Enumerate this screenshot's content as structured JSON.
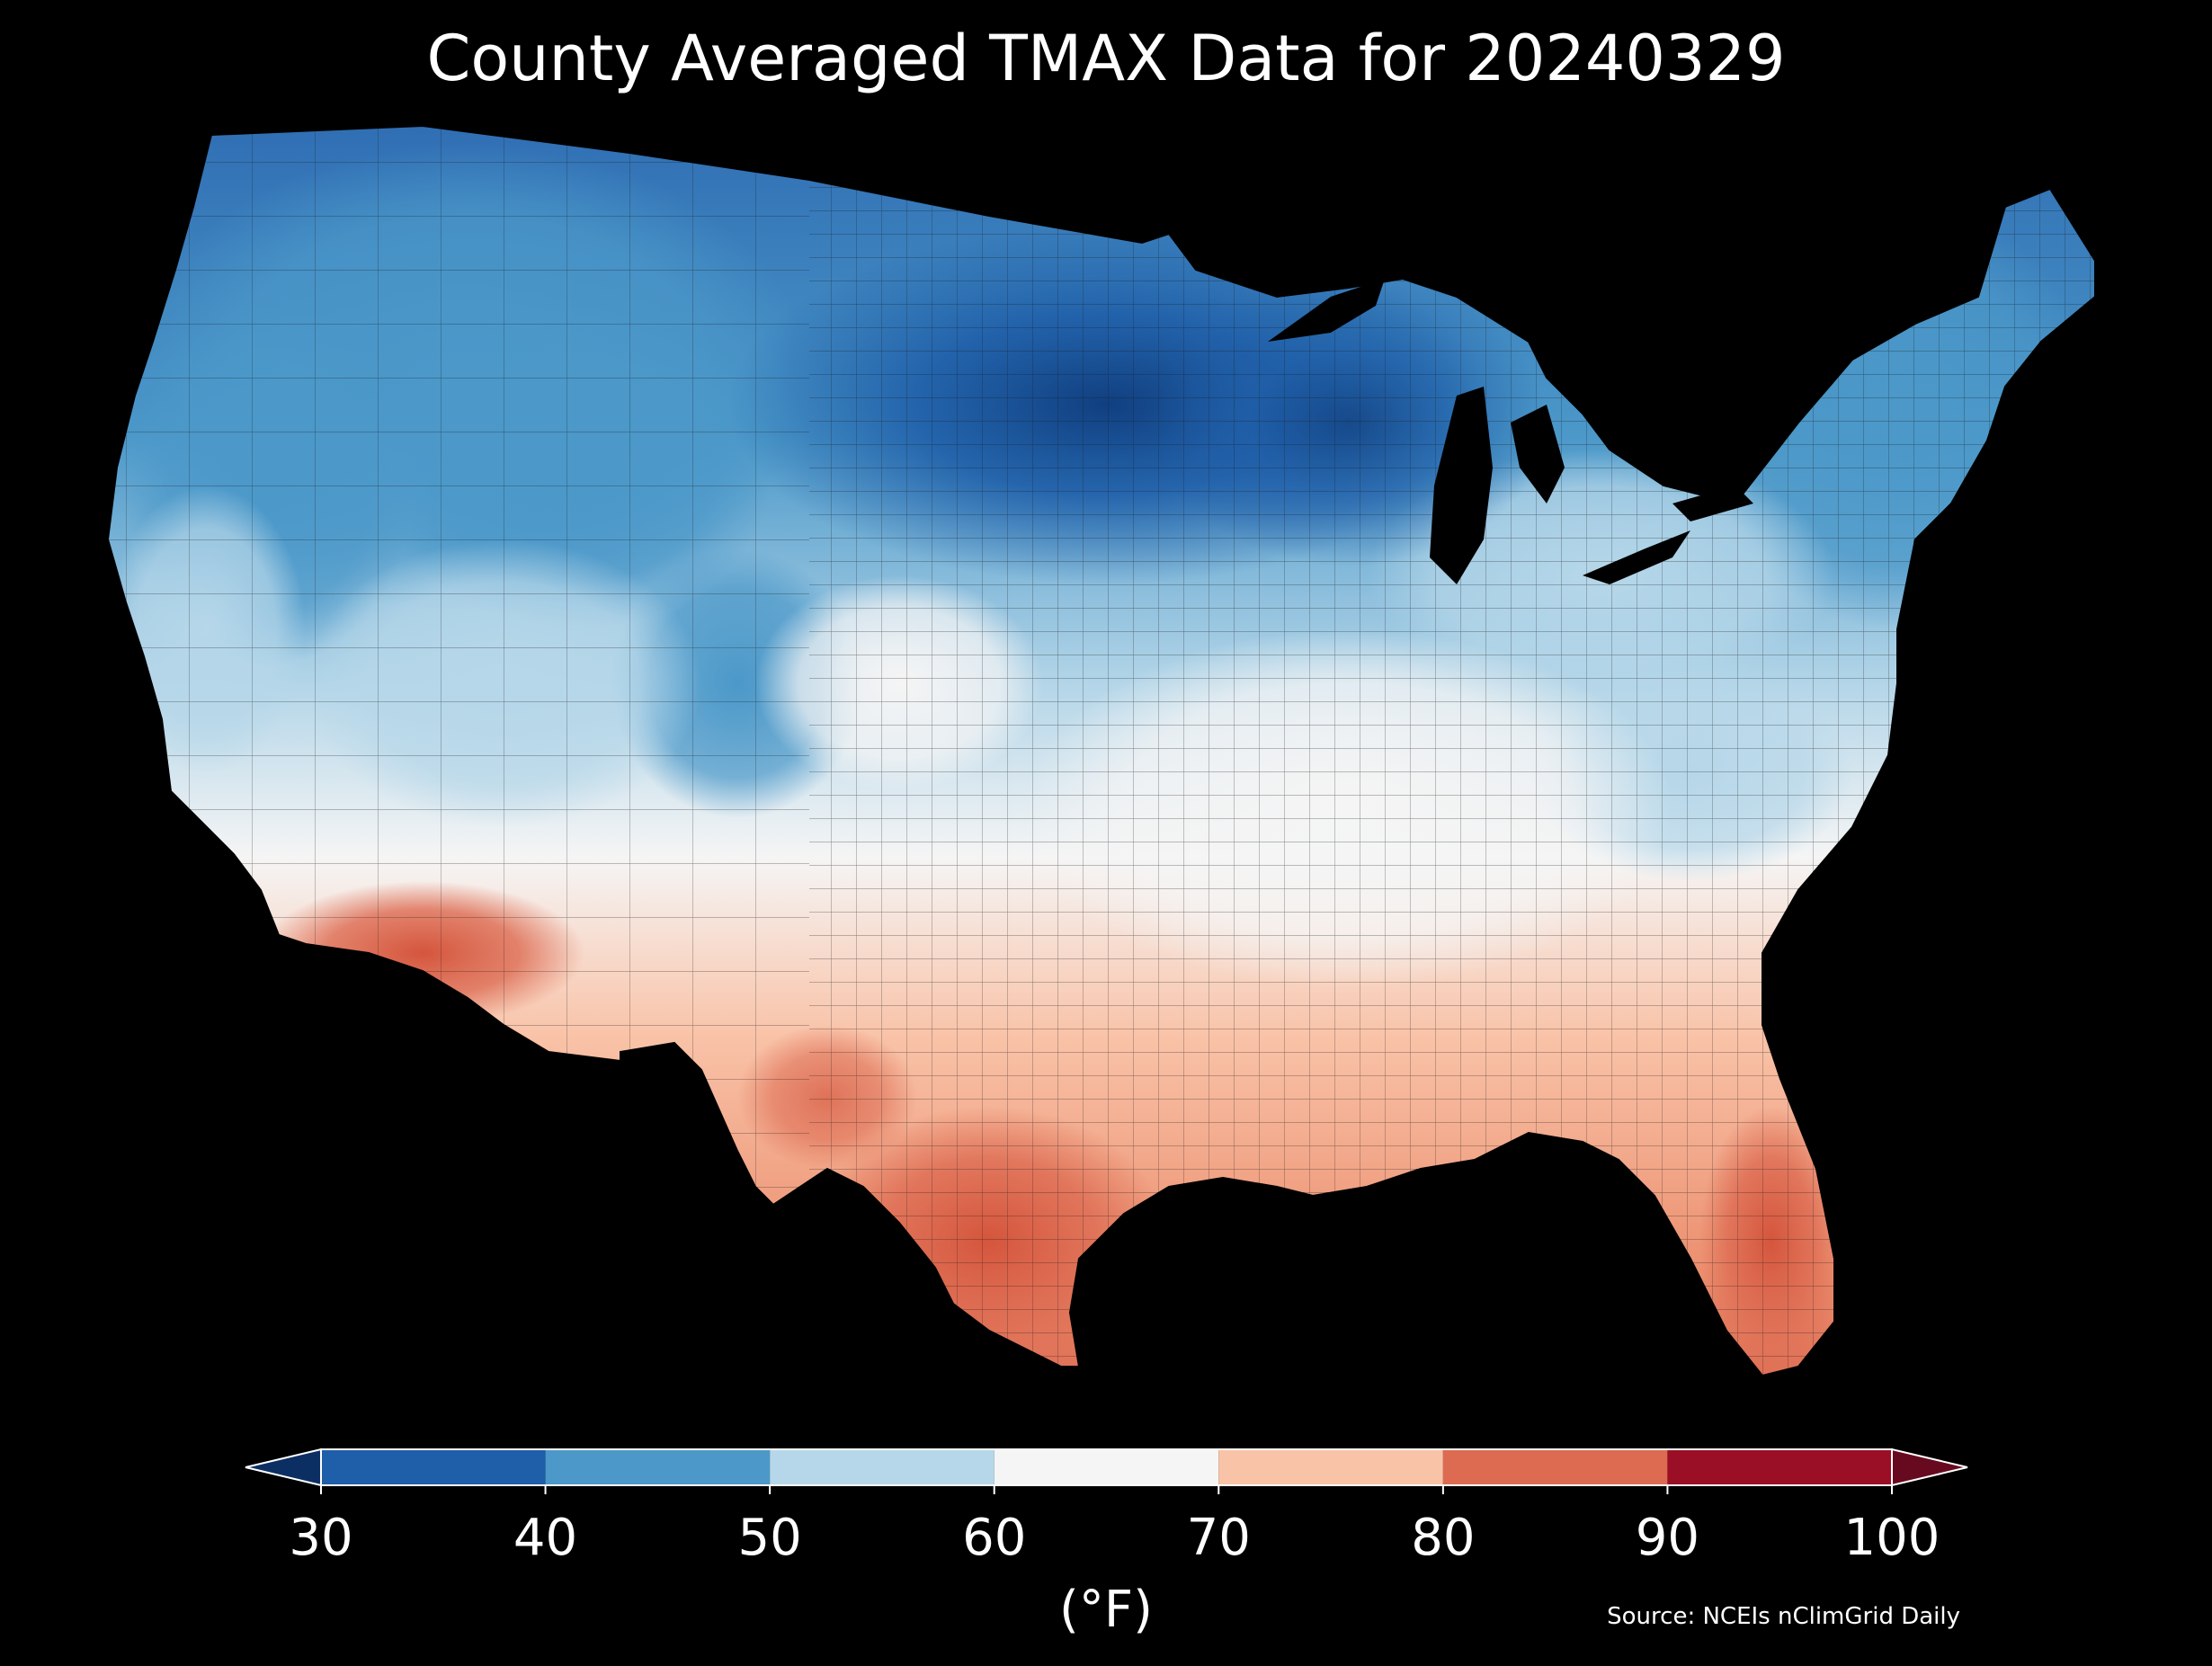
{
  "title": "County Averaged TMAX Data for 20240329",
  "colorbar": {
    "ticks": [
      "30",
      "40",
      "50",
      "60",
      "70",
      "80",
      "90",
      "100"
    ],
    "unit": "(°F)",
    "bins": [
      {
        "min": 30,
        "max": 40,
        "color": "#1f5ea8"
      },
      {
        "min": 40,
        "max": 50,
        "color": "#4b98c9"
      },
      {
        "min": 50,
        "max": 60,
        "color": "#b6d7e9"
      },
      {
        "min": 60,
        "max": 70,
        "color": "#f5f5f5"
      },
      {
        "min": 70,
        "max": 80,
        "color": "#f9c3a8"
      },
      {
        "min": 80,
        "max": 90,
        "color": "#dd6b52"
      },
      {
        "min": 90,
        "max": 100,
        "color": "#9a0f26"
      }
    ],
    "under_color": "#0b2f63",
    "over_color": "#670a1f"
  },
  "source": "Source: NCEIs nClimGrid Daily",
  "map": {
    "region": "Contiguous United States, county level",
    "pattern": [
      {
        "area": "Northern Plains / Upper Midwest / Minnesota",
        "range": "30-40"
      },
      {
        "area": "Northern Rockies / Mountain West",
        "range": "40-50"
      },
      {
        "area": "Great Basin / Colorado Plateau",
        "range": "50-60"
      },
      {
        "area": "Central Plains / Mid-South",
        "range": "60-70"
      },
      {
        "area": "Southern Plains / Gulf Coast / Southwest deserts",
        "range": "70-80"
      },
      {
        "area": "South Texas / Lower Colorado River / South Florida",
        "range": "80-90"
      },
      {
        "area": "Northeast / Great Lakes",
        "range": "40-50"
      },
      {
        "area": "Appalachians / Mid-Atlantic",
        "range": "50-60"
      }
    ]
  }
}
